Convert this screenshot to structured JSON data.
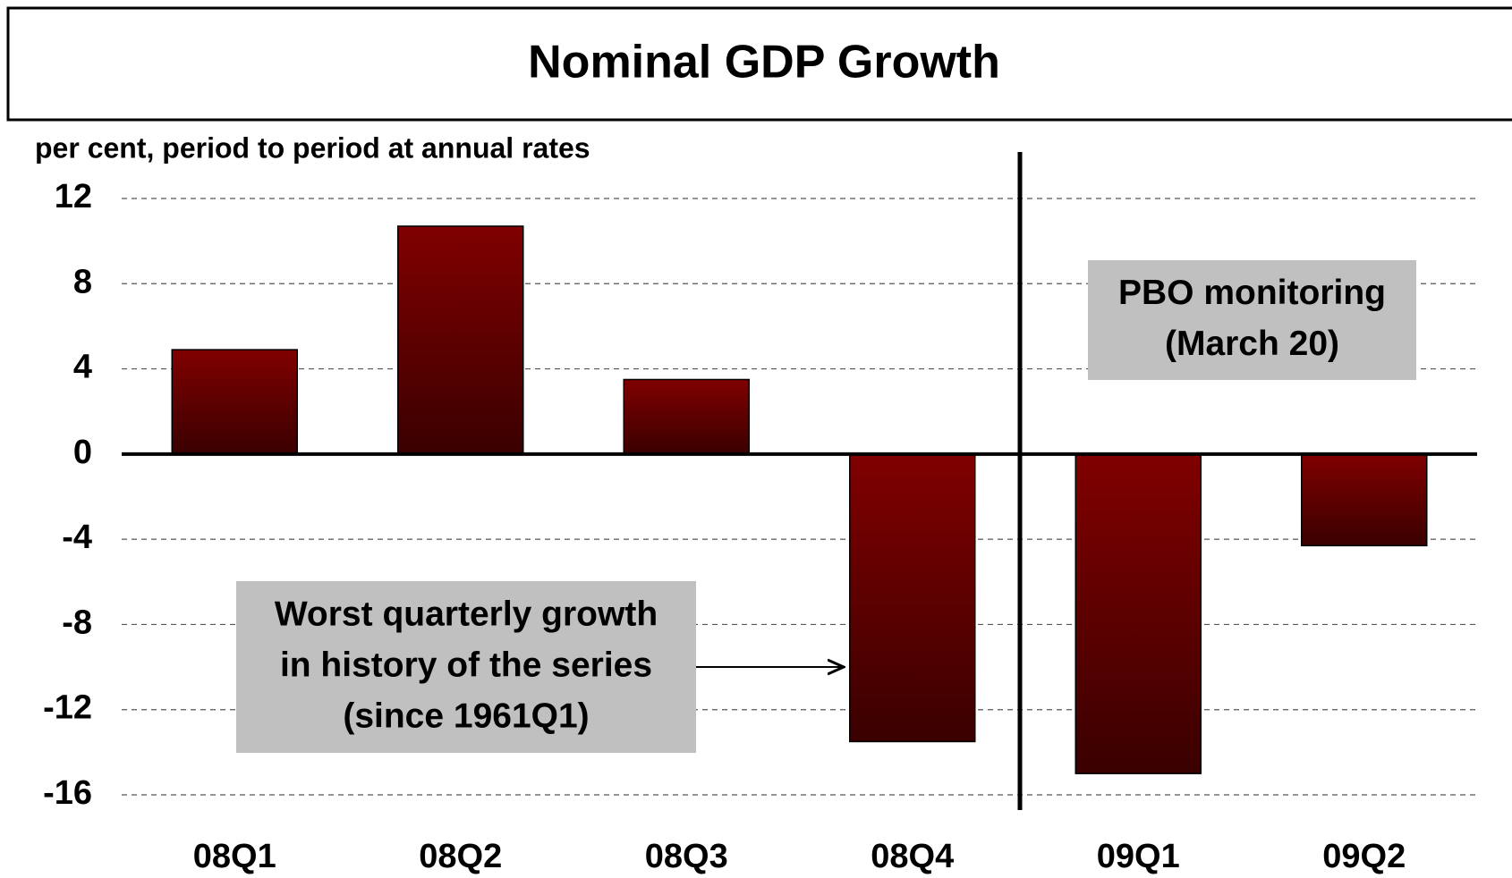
{
  "chart_data": {
    "type": "bar",
    "title": "Nominal GDP Growth",
    "subtitle": "per cent, period to period at annual rates",
    "categories": [
      "08Q1",
      "08Q2",
      "08Q3",
      "08Q4",
      "09Q1",
      "09Q2"
    ],
    "values": [
      4.9,
      10.7,
      3.5,
      -13.5,
      -15.0,
      -4.3
    ],
    "color": "#7f0000",
    "ylim": [
      -16,
      12
    ],
    "yticks": [
      -16,
      -12,
      -8,
      -4,
      0,
      4,
      8,
      12
    ],
    "grid": true,
    "annotations": [
      {
        "lines": [
          "Worst quarterly growth",
          "in history of the series",
          "(since 1961Q1)"
        ]
      },
      {
        "lines": [
          "PBO monitoring",
          "(March 20)"
        ]
      }
    ]
  }
}
